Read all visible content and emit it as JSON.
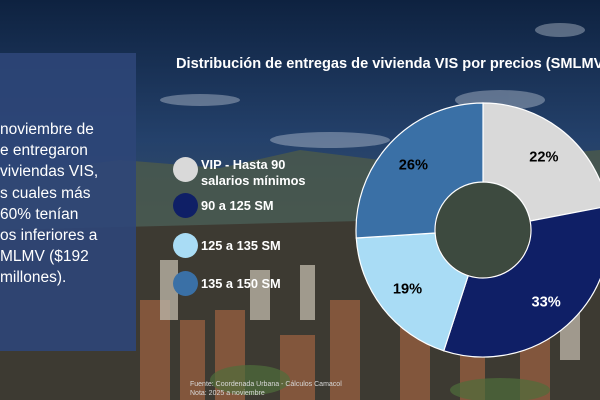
{
  "panel": {
    "text_lines": [
      "noviembre de",
      "e entregaron",
      "viviendas VIS,",
      "s cuales más",
      "60% tenían",
      "os inferiores a",
      "MLMV ($192",
      "millones)."
    ]
  },
  "source": {
    "line1": "Fuente: Coordenada Urbana - Cálculos Camacol",
    "line2": "Nota: 2025 a noviembre"
  },
  "colors": {
    "panel": "#2d4678",
    "vip": "#d9d9d9",
    "sm_90_125": "#0f1f66",
    "sm_125_135": "#a9dcf5",
    "sm_135_150": "#3a70a6"
  },
  "chart_data": {
    "type": "pie",
    "donut": true,
    "title": "Distribución de entregas de vivienda VIS por precios (SMLMV)",
    "categories": [
      "VIP - Hasta 90 salarios mínimos",
      "90 a 125 SM",
      "125 a 135 SM",
      "135 a 150 SM"
    ],
    "values": [
      22,
      33,
      19,
      26
    ],
    "value_labels": [
      "22%",
      "33%",
      "19%",
      "26%"
    ],
    "colors": [
      "#d9d9d9",
      "#0f1f66",
      "#a9dcf5",
      "#3a70a6"
    ],
    "label_colors": [
      "#000000",
      "#ffffff",
      "#000000",
      "#000000"
    ],
    "legend_position": "left"
  }
}
